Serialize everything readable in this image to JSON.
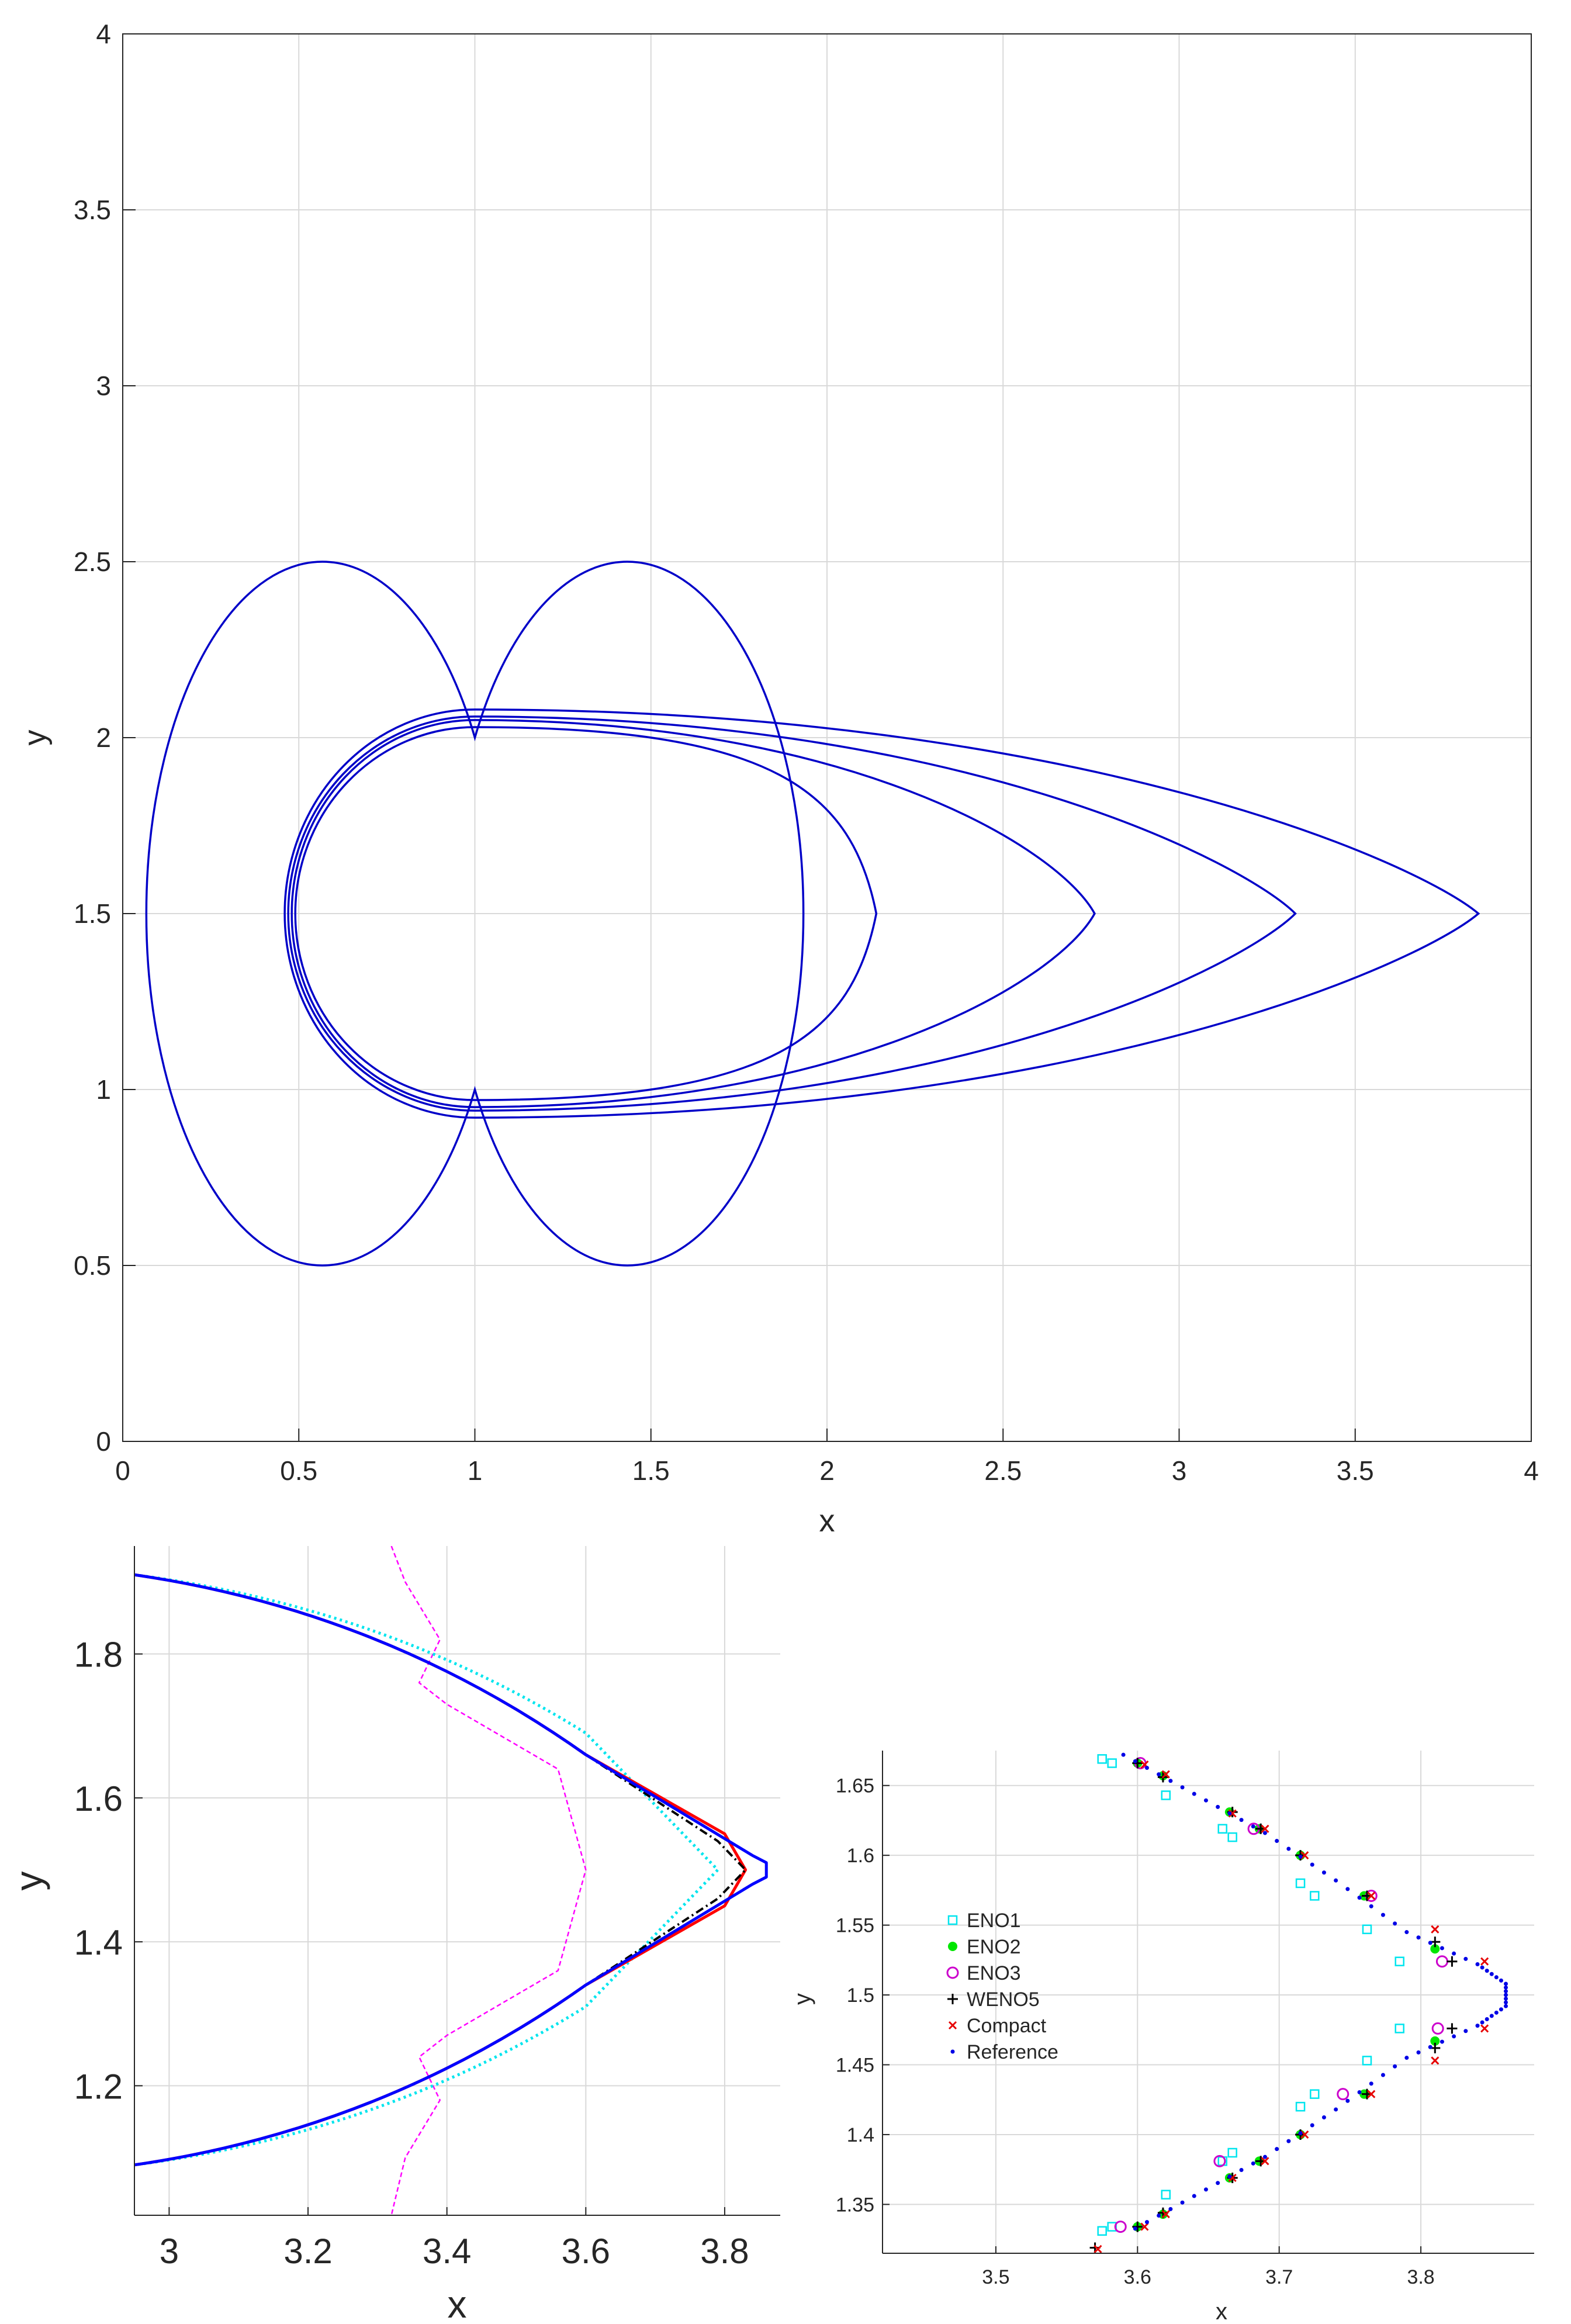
{
  "chart_data": [
    {
      "type": "line",
      "xlabel": "x",
      "ylabel": "y",
      "xlim": [
        0,
        4
      ],
      "ylim": [
        0,
        4
      ],
      "grid": true,
      "x_ticks": [
        "0",
        "0.5",
        "1",
        "1.5",
        "2",
        "2.5",
        "3",
        "3.5",
        "4"
      ],
      "y_ticks": [
        "0",
        "0.5",
        "1",
        "1.5",
        "2",
        "2.5",
        "3",
        "3.5",
        "4"
      ],
      "line_color": "#0000c8",
      "series": [
        {
          "x": [
            1.0,
            1.5,
            1.0,
            0.5
          ],
          "y": [
            1.0,
            1.5,
            2.0,
            1.5
          ]
        },
        {
          "x": [
            0.97,
            2.14,
            0.97,
            0.49
          ],
          "y": [
            0.97,
            1.5,
            2.03,
            1.5
          ]
        },
        {
          "x": [
            0.95,
            2.76,
            0.95,
            0.48
          ],
          "y": [
            0.95,
            1.5,
            2.05,
            1.5
          ]
        },
        {
          "x": [
            0.94,
            3.33,
            0.94,
            0.47
          ],
          "y": [
            0.94,
            1.5,
            2.06,
            1.5
          ]
        },
        {
          "x": [
            0.92,
            3.85,
            0.92,
            0.46
          ],
          "y": [
            0.92,
            1.5,
            2.08,
            1.5
          ]
        }
      ]
    },
    {
      "type": "line",
      "xlabel": "x",
      "ylabel": "y",
      "xlim": [
        2.95,
        3.88
      ],
      "ylim": [
        1.02,
        1.95
      ],
      "grid": true,
      "x_ticks": [
        "3",
        "3.2",
        "3.4",
        "3.6",
        "3.8"
      ],
      "y_ticks": [
        "1.2",
        "1.4",
        "1.6",
        "1.8"
      ],
      "series": [
        {
          "color": "#ff00ff",
          "style": "dashed",
          "x": [
            3.32,
            3.34,
            3.39,
            3.36,
            3.4,
            3.56,
            3.6,
            3.56,
            3.4,
            3.36,
            3.39,
            3.34,
            3.32
          ],
          "y": [
            1.95,
            1.9,
            1.82,
            1.76,
            1.73,
            1.64,
            1.5,
            1.36,
            1.27,
            1.24,
            1.18,
            1.1,
            1.02
          ]
        },
        {
          "color": "#00e5ee",
          "style": "dotted",
          "x": [
            2.95,
            3.6,
            3.79,
            3.6,
            2.95
          ],
          "y": [
            1.91,
            1.69,
            1.5,
            1.31,
            1.09
          ]
        },
        {
          "color": "#ff0000",
          "style": "solid",
          "x": [
            2.95,
            3.6,
            3.8,
            3.83,
            3.8,
            3.6,
            2.95
          ],
          "y": [
            1.91,
            1.66,
            1.55,
            1.5,
            1.45,
            1.34,
            1.09
          ]
        },
        {
          "color": "#000000",
          "style": "dashdot",
          "x": [
            2.95,
            3.6,
            3.79,
            3.83,
            3.79,
            3.6,
            2.95
          ],
          "y": [
            1.91,
            1.66,
            1.54,
            1.5,
            1.46,
            1.34,
            1.09
          ]
        },
        {
          "color": "#0000ff",
          "style": "solid",
          "x": [
            2.95,
            3.6,
            3.84,
            3.86,
            3.86,
            3.84,
            3.6,
            2.95
          ],
          "y": [
            1.91,
            1.66,
            1.52,
            1.51,
            1.49,
            1.48,
            1.34,
            1.09
          ]
        }
      ]
    },
    {
      "type": "scatter",
      "xlabel": "x",
      "ylabel": "y",
      "xlim": [
        3.42,
        3.88
      ],
      "ylim": [
        1.315,
        1.675
      ],
      "grid": true,
      "x_ticks": [
        "3.5",
        "3.6",
        "3.7",
        "3.8"
      ],
      "y_ticks": [
        "1.35",
        "1.4",
        "1.45",
        "1.5",
        "1.55",
        "1.6",
        "1.65"
      ],
      "legend": {
        "placement": "left"
      },
      "series": [
        {
          "name": "ENO1",
          "marker": "square",
          "color": "#00e5ee",
          "x": [
            3.575,
            3.582,
            3.62,
            3.66,
            3.667,
            3.715,
            3.725,
            3.762,
            3.785,
            3.785,
            3.762,
            3.725,
            3.715,
            3.667,
            3.66,
            3.62,
            3.582,
            3.575
          ],
          "y": [
            1.669,
            1.666,
            1.643,
            1.619,
            1.613,
            1.58,
            1.571,
            1.547,
            1.524,
            1.476,
            1.453,
            1.429,
            1.42,
            1.387,
            1.381,
            1.357,
            1.334,
            1.331
          ]
        },
        {
          "name": "ENO2",
          "marker": "dot",
          "color": "#00e600",
          "x": [
            3.6,
            3.618,
            3.665,
            3.686,
            3.715,
            3.76,
            3.81,
            3.81,
            3.76,
            3.715,
            3.686,
            3.665,
            3.618,
            3.6
          ],
          "y": [
            1.666,
            1.657,
            1.631,
            1.619,
            1.6,
            1.571,
            1.533,
            1.467,
            1.429,
            1.4,
            1.381,
            1.369,
            1.343,
            1.334
          ]
        },
        {
          "name": "ENO3",
          "marker": "circle",
          "color": "#cc00cc",
          "x": [
            3.602,
            3.682,
            3.765,
            3.815,
            3.812,
            3.745,
            3.658,
            3.588
          ],
          "y": [
            1.666,
            1.619,
            1.571,
            1.524,
            1.476,
            1.429,
            1.381,
            1.334
          ]
        },
        {
          "name": "WENO5",
          "marker": "plus",
          "color": "#000000",
          "x": [
            3.6,
            3.618,
            3.667,
            3.687,
            3.715,
            3.762,
            3.81,
            3.822,
            3.822,
            3.81,
            3.762,
            3.715,
            3.687,
            3.667,
            3.618,
            3.6,
            3.57
          ],
          "y": [
            1.666,
            1.656,
            1.631,
            1.619,
            1.6,
            1.571,
            1.538,
            1.524,
            1.476,
            1.462,
            1.429,
            1.4,
            1.381,
            1.369,
            1.344,
            1.334,
            1.319
          ]
        },
        {
          "name": "Compact",
          "marker": "x",
          "color": "#e60000",
          "x": [
            3.605,
            3.62,
            3.667,
            3.69,
            3.718,
            3.765,
            3.81,
            3.845,
            3.845,
            3.81,
            3.765,
            3.718,
            3.69,
            3.667,
            3.62,
            3.605,
            3.572
          ],
          "y": [
            1.665,
            1.658,
            1.63,
            1.619,
            1.6,
            1.571,
            1.547,
            1.524,
            1.476,
            1.453,
            1.429,
            1.4,
            1.381,
            1.369,
            1.343,
            1.334,
            1.318
          ]
        },
        {
          "name": "Reference",
          "marker": "point",
          "color": "#0000e6",
          "x": [
            3.59,
            3.64,
            3.69,
            3.74,
            3.79,
            3.84,
            3.86,
            3.86,
            3.84,
            3.79,
            3.74,
            3.69,
            3.64,
            3.59
          ],
          "y": [
            1.672,
            1.644,
            1.616,
            1.582,
            1.545,
            1.522,
            1.508,
            1.492,
            1.478,
            1.455,
            1.418,
            1.384,
            1.356,
            1.328
          ]
        }
      ]
    }
  ]
}
